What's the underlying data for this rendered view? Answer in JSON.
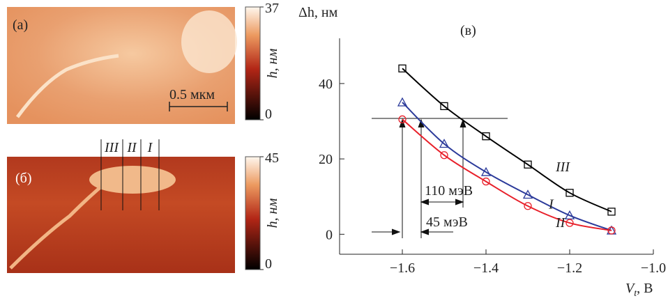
{
  "images": [
    {
      "panel_label": "(а)",
      "scale_bar": "0.5 мкм",
      "colorbar_label": "h, нм",
      "colorbar_lim": [
        0,
        37
      ],
      "colorbar_ticks": [
        0,
        37
      ]
    },
    {
      "panel_label": "(б)",
      "colorbar_label": "h, нм",
      "colorbar_lim": [
        0,
        45
      ],
      "colorbar_ticks": [
        0,
        45
      ],
      "line_labels": [
        "III",
        "II",
        "I"
      ]
    }
  ],
  "chart_data": {
    "type": "line",
    "panel_label": "(в)",
    "y_label": "Δh, нм",
    "x_label_main": "V",
    "x_label_sub": "t",
    "x_label_unit": ", В",
    "x": [
      -1.6,
      -1.5,
      -1.4,
      -1.3,
      -1.2,
      -1.1
    ],
    "series": [
      {
        "name": "III",
        "color": "#000000",
        "marker": "square",
        "values": [
          44,
          34,
          26,
          18.5,
          11,
          6
        ]
      },
      {
        "name": "I",
        "color": "#2b3a9a",
        "marker": "triangle",
        "values": [
          35,
          24,
          16.5,
          10.5,
          5,
          1
        ]
      },
      {
        "name": "II",
        "color": "#e8202a",
        "marker": "circle",
        "values": [
          30.5,
          21,
          14,
          7.5,
          3,
          1
        ]
      }
    ],
    "xlim": [
      -1.75,
      -1.0
    ],
    "ylim": [
      -5.3,
      52
    ],
    "xticks": [
      {
        "value": -1.6,
        "label": "−1.6"
      },
      {
        "value": -1.4,
        "label": "−1.4"
      },
      {
        "value": -1.2,
        "label": "−1.2"
      },
      {
        "value": -1.0,
        "label": "−1.0"
      }
    ],
    "yticks": [
      0,
      20,
      40
    ],
    "annotations": [
      "110 мэВ",
      "45 мэВ"
    ]
  }
}
